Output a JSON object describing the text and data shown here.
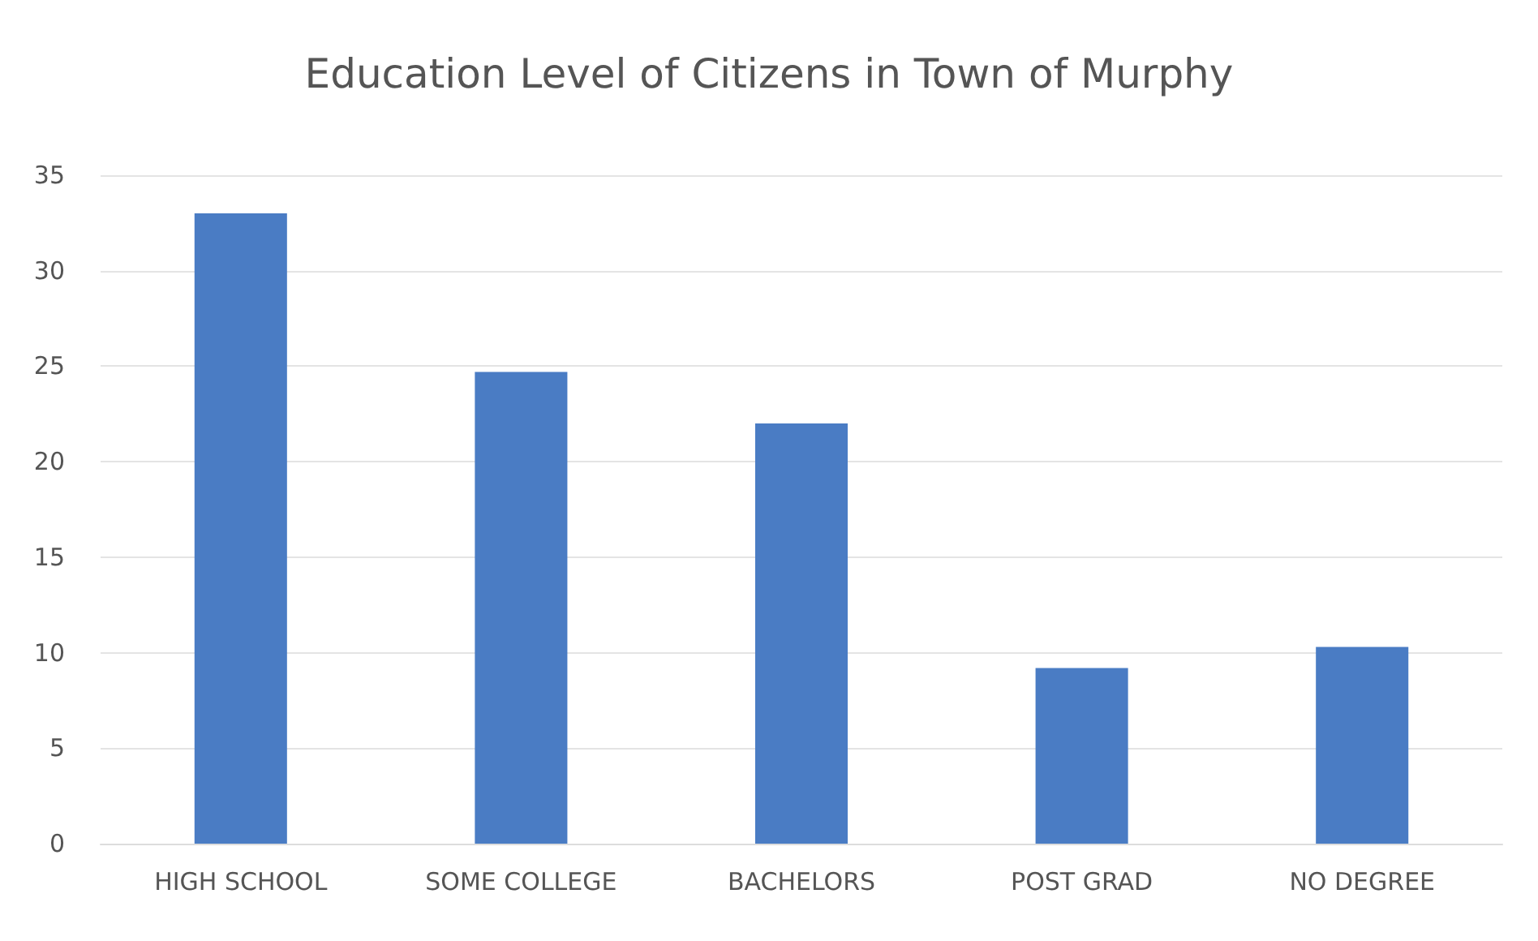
{
  "chart_data": {
    "type": "bar",
    "title": "Education Level of Citizens in Town of Murphy",
    "categories": [
      "HIGH SCHOOL",
      "SOME COLLEGE",
      "BACHELORS",
      "POST GRAD",
      "NO DEGREE"
    ],
    "values": [
      33,
      24.7,
      22,
      9.2,
      10.3
    ],
    "color": "#4a7cc4",
    "ylim": [
      0,
      35
    ],
    "yticks": [
      0,
      5,
      10,
      15,
      20,
      25,
      30,
      35
    ],
    "grid": "y"
  }
}
